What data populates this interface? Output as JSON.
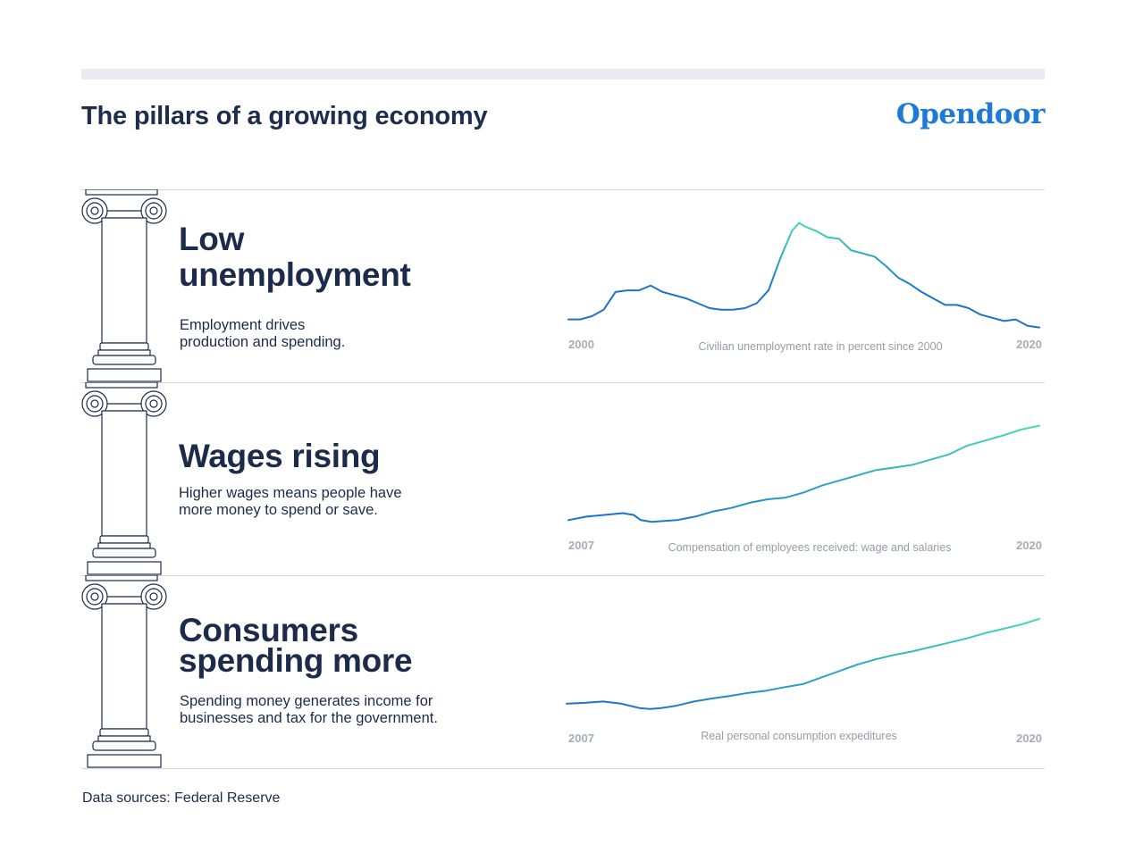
{
  "header": {
    "title": "The pillars of a growing economy",
    "logo": "Opendoor"
  },
  "sections": [
    {
      "heading_lines": [
        "Low",
        "unemployment"
      ],
      "desc_lines": [
        "Employment drives",
        "production and spending."
      ]
    },
    {
      "heading_lines": [
        "Wages rising"
      ],
      "desc_lines": [
        "Higher wages means people have",
        "more money to spend or save."
      ]
    },
    {
      "heading_lines": [
        "Consumers",
        "spending more"
      ],
      "desc_lines": [
        "Spending money generates income for",
        "businesses and tax for the government."
      ]
    }
  ],
  "footer": {
    "source": "Data sources: Federal Reserve"
  },
  "colors": {
    "line_start": "#1b74c8",
    "line_end": "#41dcb5",
    "text": "#1c2b4a",
    "logo": "#1d7ad6",
    "axis": "#a6adb5"
  },
  "icons": {
    "pillar": "ionic-column-icon"
  },
  "chart_data": [
    {
      "type": "line",
      "caption": "Civilian unemployment rate in percent since 2000",
      "x_start_label": "2000",
      "x_end_label": "2020",
      "x": [
        2000.0,
        2000.5,
        2001.0,
        2001.5,
        2002.0,
        2002.5,
        2003.0,
        2003.5,
        2004.0,
        2004.5,
        2005.0,
        2005.5,
        2006.0,
        2006.5,
        2007.0,
        2007.5,
        2008.0,
        2008.5,
        2009.0,
        2009.5,
        2009.8,
        2010.0,
        2010.5,
        2011.0,
        2011.5,
        2012.0,
        2012.5,
        2013.0,
        2013.5,
        2014.0,
        2014.5,
        2015.0,
        2015.5,
        2016.0,
        2016.5,
        2017.0,
        2017.5,
        2018.0,
        2018.5,
        2019.0,
        2019.5,
        2020.0
      ],
      "y": [
        4.0,
        4.0,
        4.2,
        4.6,
        5.7,
        5.8,
        5.8,
        6.1,
        5.7,
        5.5,
        5.3,
        5.0,
        4.7,
        4.6,
        4.6,
        4.7,
        5.0,
        5.8,
        7.8,
        9.5,
        10.0,
        9.8,
        9.5,
        9.1,
        9.0,
        8.3,
        8.1,
        7.9,
        7.3,
        6.6,
        6.2,
        5.7,
        5.3,
        4.9,
        4.9,
        4.7,
        4.3,
        4.1,
        3.9,
        4.0,
        3.6,
        3.5
      ],
      "ylim": [
        3.2,
        10.3
      ]
    },
    {
      "type": "line",
      "caption": "Compensation of employees received: wage and salaries",
      "x_start_label": "2007",
      "x_end_label": "2020",
      "x": [
        2007.0,
        2007.5,
        2008.0,
        2008.5,
        2008.8,
        2009.0,
        2009.3,
        2009.6,
        2010.0,
        2010.5,
        2011.0,
        2011.5,
        2012.0,
        2012.5,
        2013.0,
        2013.5,
        2014.0,
        2014.5,
        2015.0,
        2015.5,
        2016.0,
        2016.5,
        2017.0,
        2017.5,
        2018.0,
        2018.5,
        2019.0,
        2019.5,
        2020.0
      ],
      "y": [
        6.3,
        6.4,
        6.45,
        6.5,
        6.45,
        6.3,
        6.25,
        6.27,
        6.3,
        6.4,
        6.55,
        6.65,
        6.8,
        6.9,
        6.95,
        7.1,
        7.3,
        7.45,
        7.6,
        7.75,
        7.82,
        7.9,
        8.05,
        8.2,
        8.45,
        8.6,
        8.75,
        8.92,
        9.03
      ],
      "ylim": [
        6.1,
        9.15
      ]
    },
    {
      "type": "line",
      "caption": "Real personal consumption expeditures",
      "x_start_label": "2007",
      "x_end_label": "2020",
      "x": [
        2007.0,
        2007.5,
        2008.0,
        2008.5,
        2009.0,
        2009.3,
        2009.6,
        2010.0,
        2010.5,
        2011.0,
        2011.5,
        2012.0,
        2012.5,
        2013.0,
        2013.5,
        2014.0,
        2014.5,
        2015.0,
        2015.5,
        2016.0,
        2016.5,
        2017.0,
        2017.5,
        2018.0,
        2018.5,
        2019.0,
        2019.5,
        2020.0
      ],
      "y": [
        10.1,
        10.12,
        10.15,
        10.1,
        10.0,
        9.98,
        10.0,
        10.05,
        10.15,
        10.22,
        10.28,
        10.35,
        10.4,
        10.48,
        10.55,
        10.7,
        10.85,
        11.0,
        11.12,
        11.22,
        11.3,
        11.4,
        11.5,
        11.6,
        11.72,
        11.82,
        11.92,
        12.05
      ],
      "ylim": [
        9.85,
        12.15
      ]
    }
  ]
}
